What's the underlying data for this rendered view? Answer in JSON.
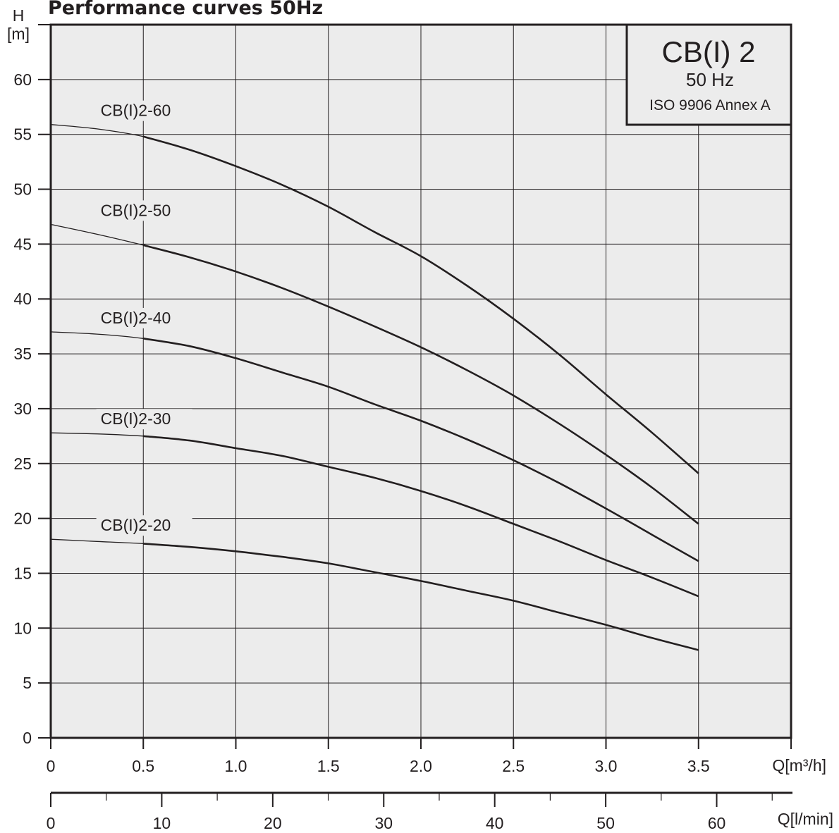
{
  "chart_data": {
    "type": "line",
    "title": "Performance curves 50Hz",
    "ylabel": "H",
    "yunit": "[m]",
    "xlabel": "Q[m³/h]",
    "x2label": "Q[l/min]",
    "xlim": [
      0,
      4.0
    ],
    "ylim": [
      0,
      65
    ],
    "x2lim": [
      0,
      66.7
    ],
    "xticks": [
      "0",
      "0.5",
      "1.0",
      "1.5",
      "2.0",
      "2.5",
      "3.0",
      "3.5"
    ],
    "xtick_values": [
      0,
      0.5,
      1.0,
      1.5,
      2.0,
      2.5,
      3.0,
      3.5
    ],
    "yticks": [
      "0",
      "5",
      "10",
      "15",
      "20",
      "25",
      "30",
      "35",
      "40",
      "45",
      "50",
      "55",
      "60"
    ],
    "ytick_values": [
      0,
      5,
      10,
      15,
      20,
      25,
      30,
      35,
      40,
      45,
      50,
      55,
      60
    ],
    "x2ticks": [
      "0",
      "10",
      "20",
      "30",
      "40",
      "50",
      "60"
    ],
    "x2tick_values": [
      0,
      10,
      20,
      30,
      40,
      50,
      60
    ],
    "x2minor_values": [
      5,
      15,
      25,
      35,
      45,
      55,
      65
    ],
    "grid": true,
    "legend_box": {
      "title": "CB(I) 2",
      "frequency": "50 Hz",
      "standard": "ISO 9906 Annex A"
    },
    "series": [
      {
        "name": "CB(I)2-60",
        "x": [
          0,
          0.25,
          0.5,
          0.75,
          1.0,
          1.25,
          1.5,
          1.75,
          2.0,
          2.25,
          2.5,
          2.75,
          3.0,
          3.25,
          3.5
        ],
        "y": [
          55.9,
          55.5,
          54.8,
          53.6,
          52.1,
          50.4,
          48.4,
          46.1,
          43.9,
          41.2,
          38.2,
          34.9,
          31.3,
          27.8,
          24.1
        ]
      },
      {
        "name": "CB(I)2-50",
        "x": [
          0,
          0.25,
          0.5,
          0.75,
          1.0,
          1.25,
          1.5,
          1.75,
          2.0,
          2.25,
          2.5,
          2.75,
          3.0,
          3.25,
          3.5
        ],
        "y": [
          46.8,
          45.9,
          44.9,
          43.8,
          42.5,
          41.0,
          39.3,
          37.5,
          35.6,
          33.5,
          31.2,
          28.6,
          25.8,
          22.8,
          19.5
        ]
      },
      {
        "name": "CB(I)2-40",
        "x": [
          0,
          0.25,
          0.5,
          0.75,
          1.0,
          1.25,
          1.5,
          1.75,
          2.0,
          2.25,
          2.5,
          2.75,
          3.0,
          3.25,
          3.5
        ],
        "y": [
          37.0,
          36.8,
          36.4,
          35.7,
          34.6,
          33.3,
          32.0,
          30.4,
          28.9,
          27.2,
          25.3,
          23.2,
          20.9,
          18.5,
          16.1
        ]
      },
      {
        "name": "CB(I)2-30",
        "x": [
          0,
          0.25,
          0.5,
          0.75,
          1.0,
          1.25,
          1.5,
          1.75,
          2.0,
          2.25,
          2.5,
          2.75,
          3.0,
          3.25,
          3.5
        ],
        "y": [
          27.8,
          27.7,
          27.5,
          27.1,
          26.4,
          25.7,
          24.7,
          23.7,
          22.5,
          21.1,
          19.5,
          17.9,
          16.2,
          14.6,
          12.9
        ]
      },
      {
        "name": "CB(I)2-20",
        "x": [
          0,
          0.25,
          0.5,
          0.75,
          1.0,
          1.25,
          1.5,
          1.75,
          2.0,
          2.25,
          2.5,
          2.75,
          3.0,
          3.25,
          3.5
        ],
        "y": [
          18.1,
          17.9,
          17.7,
          17.4,
          17.0,
          16.5,
          15.9,
          15.1,
          14.3,
          13.4,
          12.5,
          11.4,
          10.3,
          9.1,
          8.0
        ]
      }
    ],
    "line_color": "#231f20",
    "plot_background": "#ececec"
  }
}
